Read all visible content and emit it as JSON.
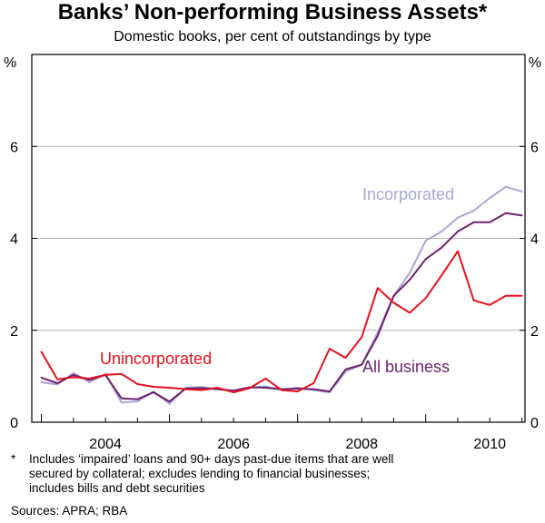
{
  "chart_data": {
    "type": "line",
    "title": "Banks’ Non-performing Business Assets*",
    "subtitle": "Domestic books, per cent of outstandings by type",
    "ylabel_left": "%",
    "ylabel_right": "%",
    "ylim": [
      0,
      8
    ],
    "yticks": [
      0,
      2,
      4,
      6
    ],
    "xlim": [
      2002.85,
      2010.55
    ],
    "xticks": [
      2004,
      2006,
      2008,
      2010
    ],
    "xtick_labels": [
      "2004",
      "2006",
      "2008",
      "2010"
    ],
    "grid": "horizontal",
    "series": [
      {
        "name": "Incorporated",
        "label": "Incorporated",
        "color": "#a9a6d6",
        "x": [
          2003.0,
          2003.25,
          2003.5,
          2003.75,
          2004.0,
          2004.25,
          2004.5,
          2004.75,
          2005.0,
          2005.25,
          2005.5,
          2005.75,
          2006.0,
          2006.25,
          2006.5,
          2006.75,
          2007.0,
          2007.25,
          2007.5,
          2007.75,
          2008.0,
          2008.25,
          2008.5,
          2008.75,
          2009.0,
          2009.25,
          2009.5,
          2009.75,
          2010.0,
          2010.25,
          2010.5
        ],
        "values": [
          0.87,
          0.82,
          1.07,
          0.87,
          1.05,
          0.43,
          0.45,
          0.67,
          0.4,
          0.75,
          0.77,
          0.72,
          0.7,
          0.75,
          0.78,
          0.7,
          0.75,
          0.7,
          0.65,
          1.1,
          1.25,
          1.95,
          2.75,
          3.25,
          3.95,
          4.15,
          4.45,
          4.6,
          4.88,
          5.12,
          5.02
        ]
      },
      {
        "name": "All business",
        "label": "All business",
        "color": "#6e1e6e",
        "x": [
          2003.0,
          2003.25,
          2003.5,
          2003.75,
          2004.0,
          2004.25,
          2004.5,
          2004.75,
          2005.0,
          2005.25,
          2005.5,
          2005.75,
          2006.0,
          2006.25,
          2006.5,
          2006.75,
          2007.0,
          2007.25,
          2007.5,
          2007.75,
          2008.0,
          2008.25,
          2008.5,
          2008.75,
          2009.0,
          2009.25,
          2009.5,
          2009.75,
          2010.0,
          2010.25,
          2010.5
        ],
        "values": [
          0.97,
          0.85,
          1.03,
          0.92,
          1.03,
          0.52,
          0.5,
          0.65,
          0.45,
          0.73,
          0.74,
          0.72,
          0.68,
          0.76,
          0.75,
          0.72,
          0.73,
          0.72,
          0.67,
          1.15,
          1.25,
          1.88,
          2.75,
          3.1,
          3.55,
          3.8,
          4.15,
          4.35,
          4.35,
          4.55,
          4.5
        ]
      },
      {
        "name": "Unincorporated",
        "label": "Unincorporated",
        "color": "#e8111c",
        "x": [
          2003.0,
          2003.25,
          2003.5,
          2003.75,
          2004.0,
          2004.25,
          2004.5,
          2004.75,
          2005.0,
          2005.25,
          2005.5,
          2005.75,
          2006.0,
          2006.25,
          2006.5,
          2006.75,
          2007.0,
          2007.25,
          2007.5,
          2007.75,
          2008.0,
          2008.25,
          2008.5,
          2008.75,
          2009.0,
          2009.25,
          2009.5,
          2009.75,
          2010.0,
          2010.25,
          2010.5
        ],
        "values": [
          1.53,
          0.93,
          0.98,
          0.95,
          1.03,
          1.05,
          0.83,
          0.77,
          0.75,
          0.72,
          0.7,
          0.75,
          0.65,
          0.74,
          0.95,
          0.7,
          0.67,
          0.85,
          1.6,
          1.4,
          1.85,
          2.92,
          2.6,
          2.38,
          2.7,
          3.2,
          3.72,
          2.65,
          2.55,
          2.75,
          2.75
        ]
      }
    ]
  },
  "footnote": {
    "marker": "*",
    "lines": [
      "Includes ‘impaired’ loans and 90+ days past-due items that are well",
      "secured by collateral; excludes lending to financial businesses;",
      "includes bills and debt securities"
    ]
  },
  "sources": "Sources: APRA; RBA",
  "colors": {
    "frame": "#000000",
    "grid": "#b3b3b3"
  }
}
